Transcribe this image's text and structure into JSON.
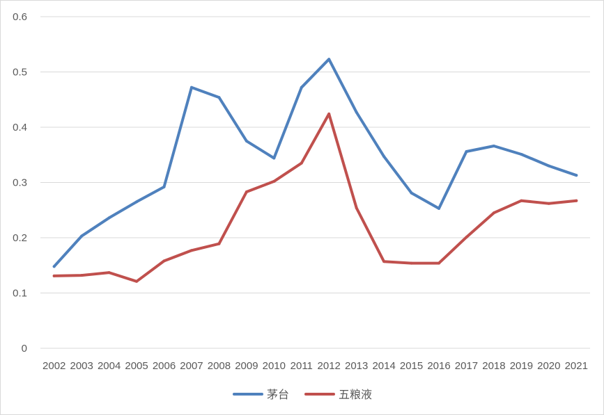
{
  "chart_data": {
    "type": "line",
    "categories": [
      "2002",
      "2003",
      "2004",
      "2005",
      "2006",
      "2007",
      "2008",
      "2009",
      "2010",
      "2011",
      "2012",
      "2013",
      "2014",
      "2015",
      "2016",
      "2017",
      "2018",
      "2019",
      "2020",
      "2021"
    ],
    "series": [
      {
        "name": "茅台",
        "color": "#4f81bd",
        "values": [
          0.148,
          0.203,
          0.236,
          0.265,
          0.292,
          0.472,
          0.454,
          0.375,
          0.344,
          0.472,
          0.523,
          0.427,
          0.347,
          0.281,
          0.253,
          0.356,
          0.366,
          0.351,
          0.33,
          0.313
        ]
      },
      {
        "name": "五粮液",
        "color": "#c0504d",
        "values": [
          0.131,
          0.132,
          0.137,
          0.121,
          0.158,
          0.177,
          0.189,
          0.283,
          0.302,
          0.335,
          0.424,
          0.254,
          0.157,
          0.154,
          0.154,
          0.201,
          0.245,
          0.267,
          0.262,
          0.267
        ]
      }
    ],
    "ylim": [
      0,
      0.6
    ],
    "yticks": [
      "0",
      "0.1",
      "0.2",
      "0.3",
      "0.4",
      "0.5",
      "0.6"
    ],
    "grid": true,
    "legend_position": "bottom"
  }
}
